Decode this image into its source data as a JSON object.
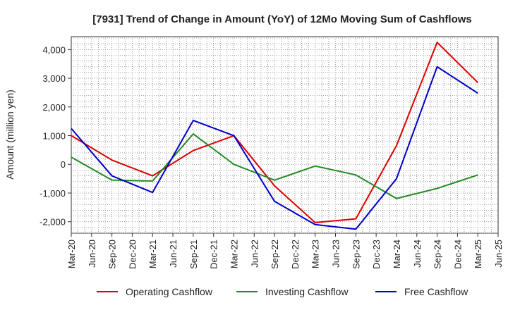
{
  "chart_data": {
    "type": "line",
    "title": "[7931]  Trend of Change in Amount (YoY) of 12Mo Moving Sum of Cashflows",
    "xlabel": "",
    "ylabel": "Amount (million yen)",
    "ylim": [
      -2400,
      4450
    ],
    "yticks": [
      -2000,
      -1000,
      0,
      1000,
      2000,
      3000,
      4000
    ],
    "ytick_labels": [
      "-2,000",
      "-1,000",
      "0",
      "1,000",
      "2,000",
      "3,000",
      "4,000"
    ],
    "x_tick_labels": [
      "Mar-20",
      "Jun-20",
      "Sep-20",
      "Dec-20",
      "Mar-21",
      "Jun-21",
      "Sep-21",
      "Dec-21",
      "Mar-22",
      "Jun-22",
      "Sep-22",
      "Dec-22",
      "Mar-23",
      "Jun-23",
      "Sep-23",
      "Dec-23",
      "Mar-24",
      "Jun-24",
      "Sep-24",
      "Dec-24",
      "Mar-25",
      "Jun-25"
    ],
    "categories": [
      "Mar-20",
      "Sep-20",
      "Mar-21",
      "Sep-21",
      "Mar-22",
      "Sep-22",
      "Mar-23",
      "Sep-23",
      "Mar-24",
      "Sep-24",
      "Mar-25"
    ],
    "grid": true,
    "legend_position": "bottom",
    "series": [
      {
        "name": "Operating Cashflow",
        "color": "#dd0000",
        "values": [
          1000,
          150,
          -400,
          480,
          1000,
          -750,
          -2030,
          -1900,
          650,
          4250,
          2850
        ]
      },
      {
        "name": "Investing Cashflow",
        "color": "#228b22",
        "values": [
          250,
          -550,
          -580,
          1060,
          0,
          -550,
          -60,
          -370,
          -1190,
          -840,
          -370
        ]
      },
      {
        "name": "Free Cashflow",
        "color": "#0000cc",
        "values": [
          1250,
          -400,
          -980,
          1530,
          1000,
          -1290,
          -2100,
          -2260,
          -500,
          3400,
          2480
        ]
      }
    ]
  }
}
